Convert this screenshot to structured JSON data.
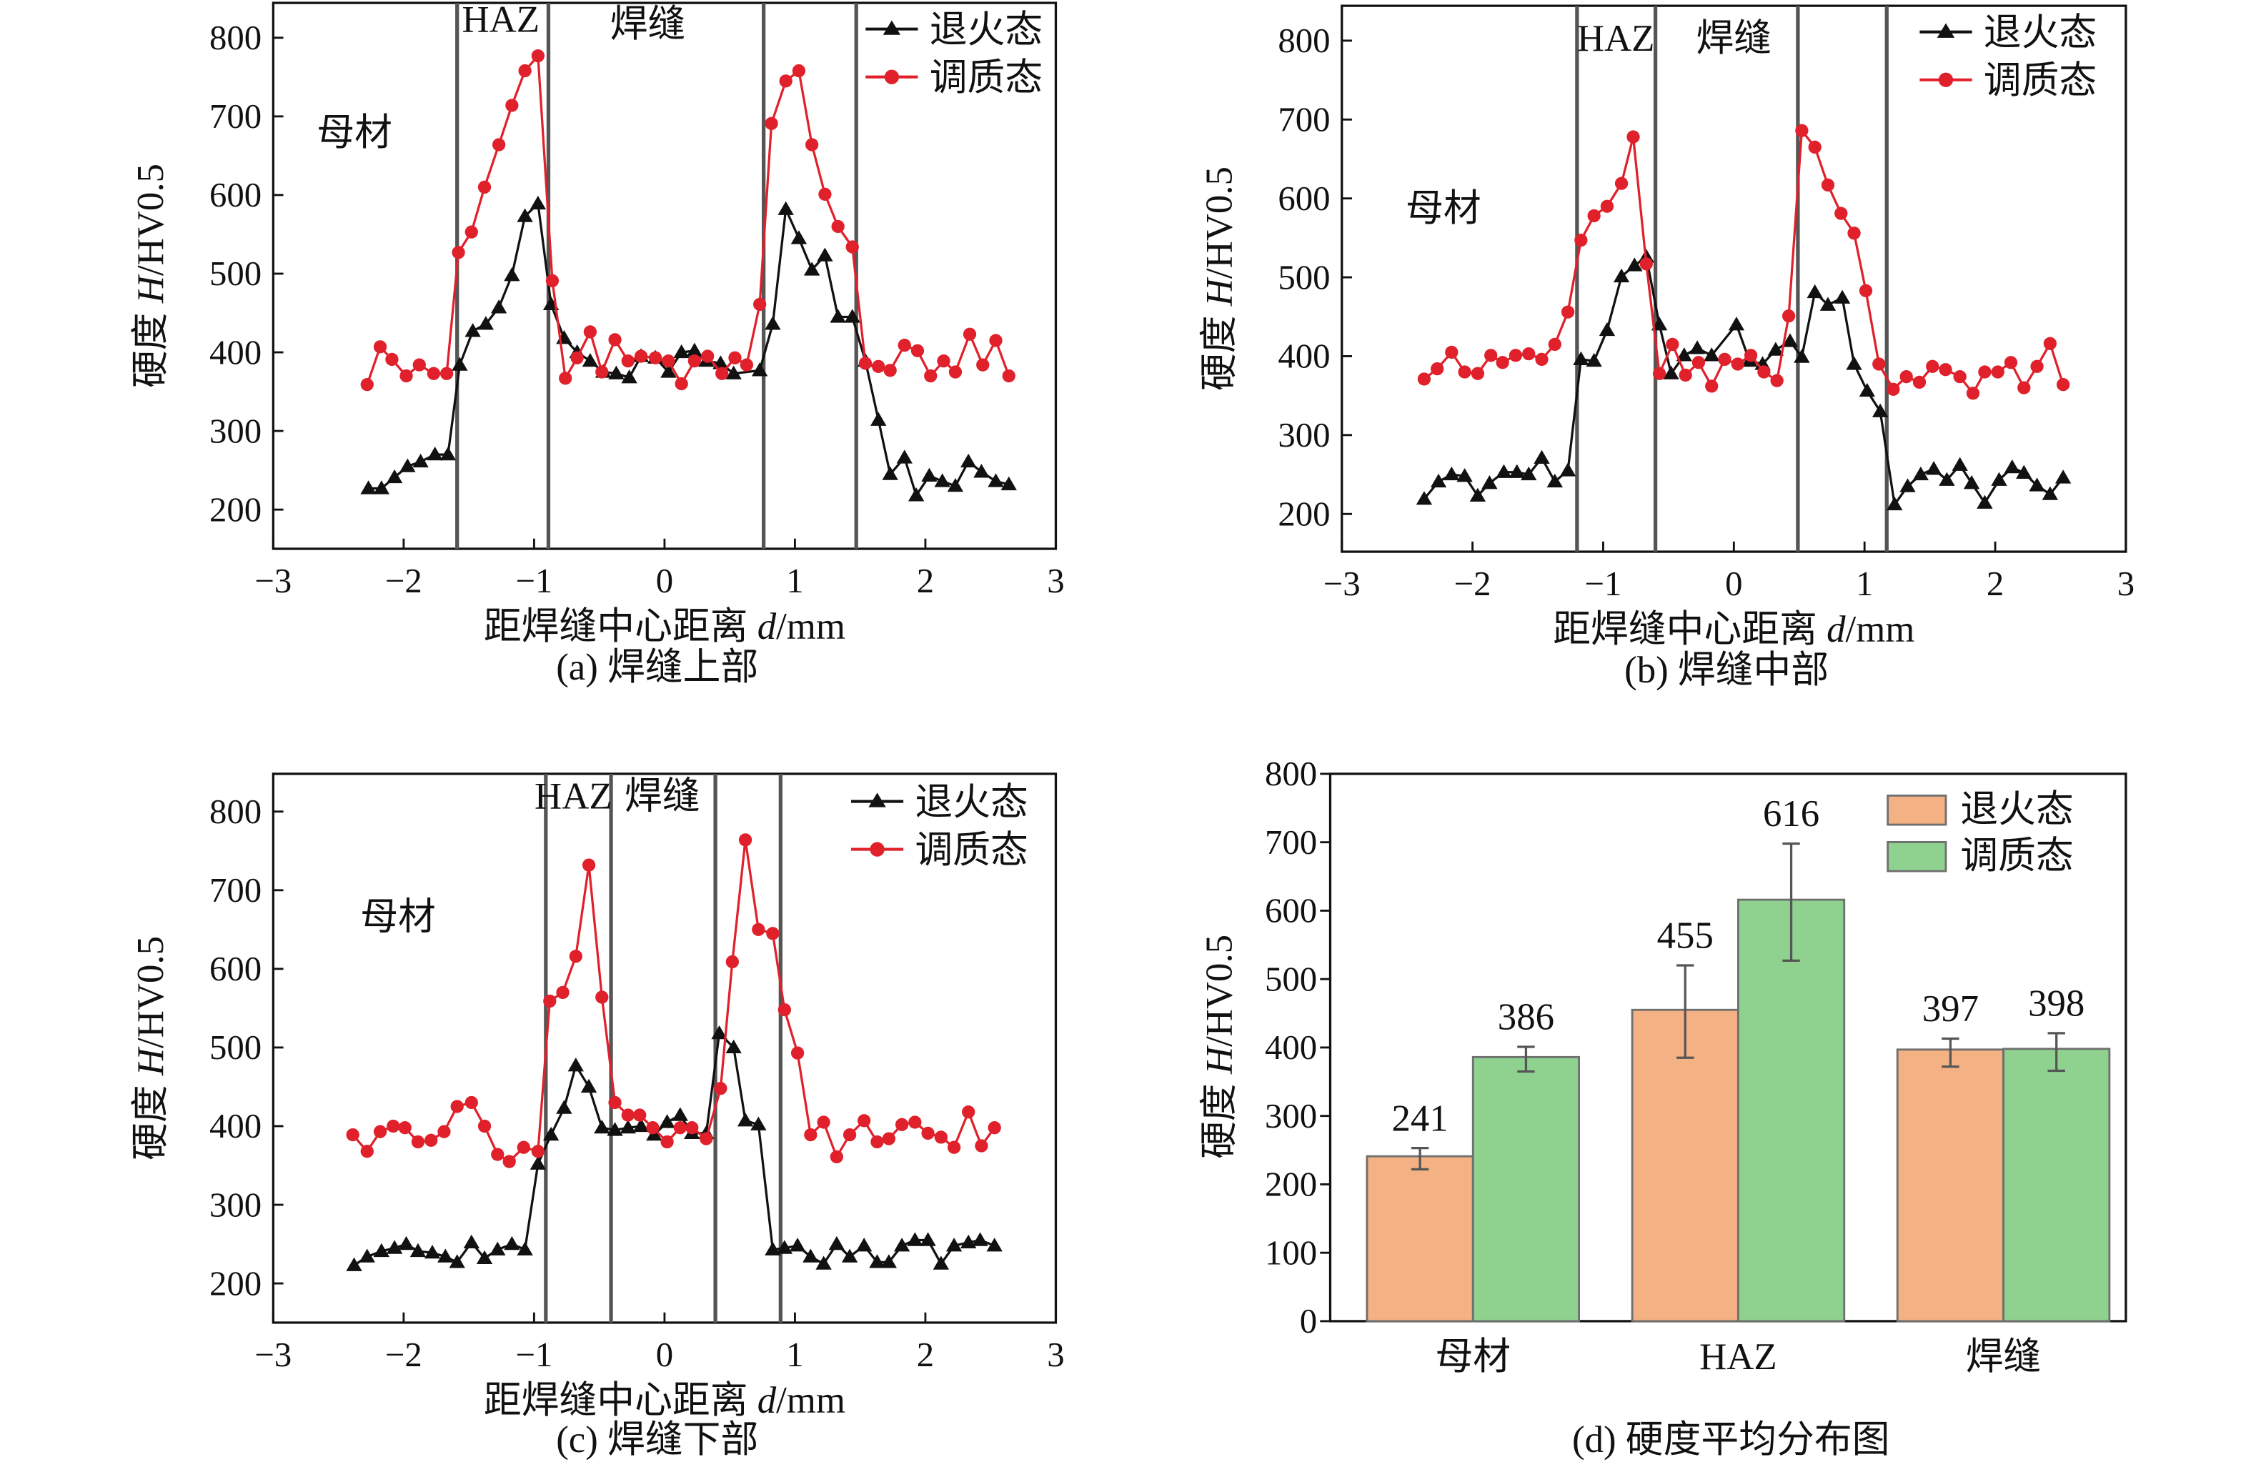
{
  "chart_data": [
    {
      "type": "line",
      "caption": "(a) 焊缝上部",
      "xlabel": "距焊缝中心距离 d/mm",
      "ylabel": "硬度 H/HV0.5",
      "xlim": [
        -3,
        3
      ],
      "ylim": [
        150,
        845
      ],
      "xticks": [
        -3,
        -2,
        -1,
        0,
        1,
        2,
        3
      ],
      "yticks": [
        200,
        300,
        400,
        500,
        600,
        700,
        800
      ],
      "grid": false,
      "legend": "top-right",
      "zone_boundaries": [
        -1.59,
        -0.89,
        0.76,
        1.47
      ],
      "annotations": [
        "母材",
        "HAZ",
        "焊缝"
      ],
      "series": [
        {
          "name": "退火态",
          "color": "#111111",
          "marker": "triangle",
          "x": [
            -2.27,
            -2.17,
            -2.07,
            -1.97,
            -1.87,
            -1.76,
            -1.66,
            -1.57,
            -1.47,
            -1.37,
            -1.27,
            -1.17,
            -1.07,
            -0.97,
            -0.87,
            -0.77,
            -0.67,
            -0.57,
            -0.47,
            -0.37,
            -0.27,
            -0.18,
            -0.07,
            0.03,
            0.13,
            0.23,
            0.32,
            0.43,
            0.53,
            0.73,
            0.83,
            0.93,
            1.03,
            1.13,
            1.23,
            1.33,
            1.44,
            1.54,
            1.64,
            1.73,
            1.84,
            1.93,
            2.03,
            2.13,
            2.23,
            2.33,
            2.43,
            2.54,
            2.64
          ],
          "y": [
            227,
            227,
            241,
            255,
            261,
            270,
            270,
            384,
            427,
            436,
            457,
            498,
            573,
            589,
            461,
            418,
            400,
            389,
            375,
            373,
            368,
            395,
            393,
            375,
            400,
            402,
            389,
            386,
            373,
            377,
            436,
            582,
            545,
            505,
            523,
            445,
            445,
            389,
            314,
            245,
            266,
            218,
            243,
            236,
            230,
            261,
            248,
            236,
            232
          ]
        },
        {
          "name": "调质态",
          "color": "#e0202a",
          "marker": "circle",
          "x": [
            -2.28,
            -2.18,
            -2.09,
            -1.98,
            -1.88,
            -1.77,
            -1.67,
            -1.58,
            -1.48,
            -1.38,
            -1.27,
            -1.17,
            -1.07,
            -0.97,
            -0.86,
            -0.76,
            -0.67,
            -0.57,
            -0.48,
            -0.38,
            -0.28,
            -0.18,
            -0.07,
            0.03,
            0.13,
            0.23,
            0.33,
            0.44,
            0.54,
            0.63,
            0.73,
            0.82,
            0.93,
            1.03,
            1.13,
            1.23,
            1.33,
            1.44,
            1.54,
            1.64,
            1.73,
            1.84,
            1.94,
            2.04,
            2.14,
            2.23,
            2.34,
            2.44,
            2.54,
            2.64
          ],
          "y": [
            359,
            407,
            391,
            370,
            384,
            373,
            373,
            527,
            553,
            610,
            664,
            714,
            758,
            777,
            491,
            367,
            393,
            426,
            375,
            416,
            389,
            395,
            393,
            389,
            360,
            389,
            395,
            373,
            393,
            384,
            461,
            691,
            745,
            758,
            664,
            601,
            560,
            534,
            386,
            382,
            377,
            409,
            402,
            370,
            389,
            375,
            423,
            384,
            415,
            370
          ]
        }
      ]
    },
    {
      "type": "line",
      "caption": "(b) 焊缝中部",
      "xlabel": "距焊缝中心距离 d/mm",
      "ylabel": "硬度 H/HV0.5",
      "xlim": [
        -3,
        3
      ],
      "ylim": [
        150,
        845
      ],
      "xticks": [
        -3,
        -2,
        -1,
        0,
        1,
        2,
        3
      ],
      "yticks": [
        200,
        300,
        400,
        500,
        600,
        700,
        800
      ],
      "grid": false,
      "legend": "top-right",
      "zone_boundaries": [
        -1.2,
        -0.6,
        0.49,
        1.17
      ],
      "annotations": [
        "母材",
        "HAZ",
        "焊缝"
      ],
      "series": [
        {
          "name": "退火态",
          "color": "#111111",
          "marker": "triangle",
          "x": [
            -2.37,
            -2.26,
            -2.16,
            -2.06,
            -1.96,
            -1.87,
            -1.76,
            -1.66,
            -1.57,
            -1.47,
            -1.37,
            -1.27,
            -1.17,
            -1.07,
            -0.97,
            -0.86,
            -0.76,
            -0.67,
            -0.57,
            -0.48,
            -0.38,
            -0.28,
            -0.17,
            0.02,
            0.12,
            0.22,
            0.32,
            0.43,
            0.52,
            0.62,
            0.72,
            0.83,
            0.92,
            1.02,
            1.12,
            1.23,
            1.33,
            1.43,
            1.53,
            1.63,
            1.73,
            1.82,
            1.92,
            2.03,
            2.13,
            2.22,
            2.32,
            2.42,
            2.52
          ],
          "y": [
            219,
            241,
            250,
            248,
            223,
            239,
            253,
            253,
            250,
            271,
            241,
            255,
            396,
            394,
            433,
            501,
            515,
            526,
            440,
            378,
            401,
            410,
            401,
            440,
            394,
            390,
            408,
            419,
            399,
            481,
            465,
            474,
            390,
            356,
            330,
            212,
            235,
            250,
            257,
            243,
            262,
            239,
            214,
            243,
            259,
            252,
            236,
            225,
            246
          ]
        },
        {
          "name": "调质态",
          "color": "#e0202a",
          "marker": "circle",
          "x": [
            -2.37,
            -2.27,
            -2.16,
            -2.06,
            -1.96,
            -1.86,
            -1.77,
            -1.67,
            -1.57,
            -1.47,
            -1.37,
            -1.27,
            -1.17,
            -1.07,
            -0.97,
            -0.86,
            -0.77,
            -0.67,
            -0.57,
            -0.47,
            -0.37,
            -0.27,
            -0.17,
            -0.07,
            0.03,
            0.13,
            0.23,
            0.33,
            0.42,
            0.52,
            0.62,
            0.72,
            0.82,
            0.92,
            1.01,
            1.11,
            1.22,
            1.32,
            1.42,
            1.52,
            1.62,
            1.73,
            1.83,
            1.92,
            2.02,
            2.12,
            2.22,
            2.32,
            2.42,
            2.52
          ],
          "y": [
            371,
            384,
            405,
            380,
            378,
            401,
            392,
            401,
            403,
            396,
            415,
            456,
            547,
            578,
            590,
            619,
            678,
            517,
            378,
            415,
            376,
            392,
            362,
            396,
            390,
            401,
            380,
            369,
            451,
            686,
            665,
            617,
            581,
            556,
            483,
            390,
            358,
            374,
            367,
            387,
            383,
            374,
            353,
            380,
            380,
            392,
            360,
            387,
            416,
            364
          ]
        }
      ]
    },
    {
      "type": "line",
      "caption": "(c) 焊缝下部",
      "xlabel": "距焊缝中心距离 d/mm",
      "ylabel": "硬度 H/HV0.5",
      "xlim": [
        -3,
        3
      ],
      "ylim": [
        150,
        845
      ],
      "xticks": [
        -3,
        -2,
        -1,
        0,
        1,
        2,
        3
      ],
      "yticks": [
        200,
        300,
        400,
        500,
        600,
        700,
        800
      ],
      "grid": false,
      "legend": "top-right",
      "zone_boundaries": [
        -0.91,
        -0.41,
        0.39,
        0.89
      ],
      "annotations": [
        "母材",
        "HAZ",
        "焊缝"
      ],
      "series": [
        {
          "name": "退火态",
          "color": "#111111",
          "marker": "triangle",
          "x": [
            -2.38,
            -2.28,
            -2.17,
            -2.07,
            -1.98,
            -1.89,
            -1.78,
            -1.68,
            -1.59,
            -1.48,
            -1.38,
            -1.28,
            -1.17,
            -1.07,
            -0.97,
            -0.87,
            -0.77,
            -0.68,
            -0.58,
            -0.48,
            -0.38,
            -0.28,
            -0.18,
            -0.08,
            0.02,
            0.12,
            0.21,
            0.32,
            0.42,
            0.53,
            0.62,
            0.72,
            0.83,
            0.92,
            1.02,
            1.12,
            1.22,
            1.32,
            1.42,
            1.53,
            1.63,
            1.72,
            1.82,
            1.92,
            2.02,
            2.12,
            2.22,
            2.33,
            2.42,
            2.53
          ],
          "y": [
            223,
            234,
            241,
            245,
            250,
            241,
            239,
            234,
            227,
            252,
            232,
            243,
            250,
            243,
            352,
            389,
            423,
            477,
            450,
            398,
            395,
            398,
            400,
            389,
            405,
            414,
            391,
            391,
            518,
            500,
            407,
            402,
            243,
            245,
            248,
            234,
            225,
            250,
            234,
            248,
            227,
            227,
            248,
            255,
            255,
            225,
            248,
            252,
            255,
            248
          ]
        },
        {
          "name": "调质态",
          "color": "#e0202a",
          "marker": "circle",
          "x": [
            -2.39,
            -2.28,
            -2.18,
            -2.08,
            -1.99,
            -1.89,
            -1.79,
            -1.69,
            -1.59,
            -1.48,
            -1.38,
            -1.28,
            -1.19,
            -1.08,
            -0.97,
            -0.88,
            -0.78,
            -0.68,
            -0.58,
            -0.48,
            -0.38,
            -0.28,
            -0.19,
            -0.09,
            0.02,
            0.12,
            0.21,
            0.32,
            0.43,
            0.52,
            0.62,
            0.72,
            0.83,
            0.92,
            1.02,
            1.12,
            1.22,
            1.32,
            1.42,
            1.53,
            1.63,
            1.72,
            1.82,
            1.92,
            2.02,
            2.12,
            2.22,
            2.33,
            2.43,
            2.53
          ],
          "y": [
            389,
            368,
            393,
            400,
            398,
            380,
            382,
            393,
            425,
            430,
            400,
            364,
            355,
            373,
            368,
            559,
            570,
            616,
            732,
            564,
            430,
            414,
            414,
            398,
            380,
            398,
            398,
            384,
            448,
            609,
            764,
            650,
            645,
            548,
            493,
            389,
            405,
            361,
            389,
            407,
            380,
            384,
            402,
            405,
            391,
            386,
            373,
            418,
            375,
            398
          ]
        }
      ]
    },
    {
      "type": "bar",
      "caption": "(d) 硬度平均分布图",
      "xlabel": "",
      "ylabel": "硬度 H/HV0.5",
      "ylim": [
        0,
        800
      ],
      "yticks": [
        0,
        100,
        200,
        300,
        400,
        500,
        600,
        700,
        800
      ],
      "grid": false,
      "legend": "top-right",
      "categories": [
        "母材",
        "HAZ",
        "焊缝"
      ],
      "series": [
        {
          "name": "退火态",
          "color": "#f4b183",
          "values": [
            241,
            455,
            397
          ],
          "labels": [
            "241",
            "455",
            "397"
          ],
          "error_range": [
            [
              222,
              253
            ],
            [
              385,
              520
            ],
            [
              372,
              413
            ]
          ]
        },
        {
          "name": "调质态",
          "color": "#8fd18f",
          "values": [
            386,
            616,
            398
          ],
          "labels": [
            "386",
            "616",
            "398"
          ],
          "error_range": [
            [
              365,
              401
            ],
            [
              527,
              698
            ],
            [
              366,
              421
            ]
          ]
        }
      ]
    }
  ]
}
